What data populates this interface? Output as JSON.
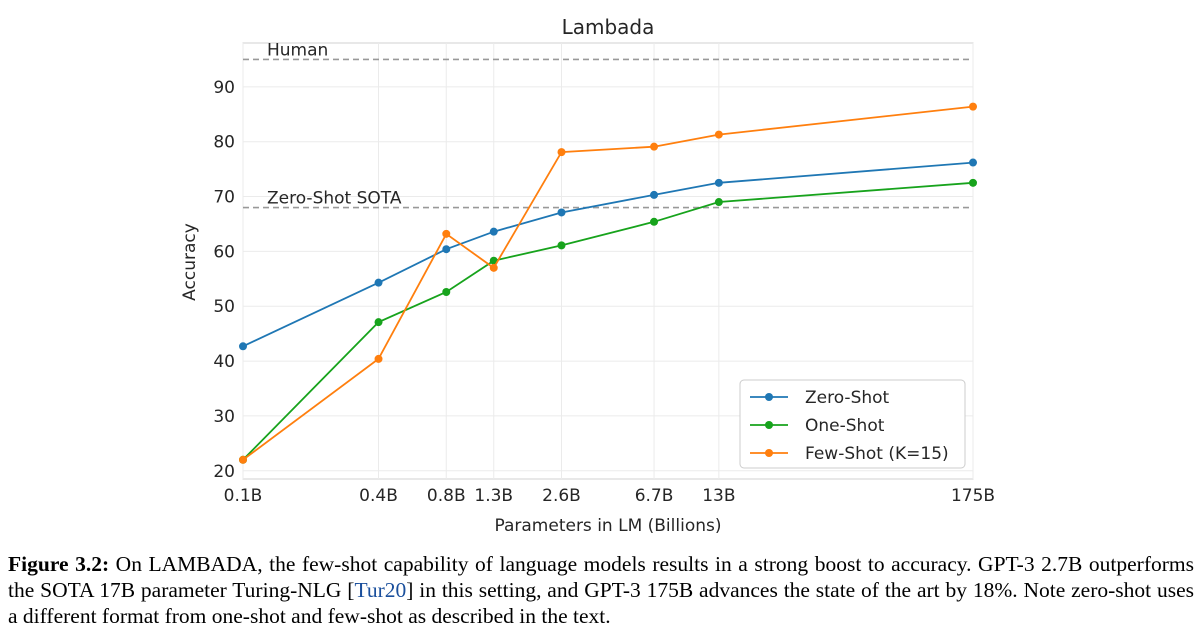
{
  "chart_data": {
    "type": "line",
    "title": "Lambada",
    "xlabel": "Parameters in LM (Billions)",
    "ylabel": "Accuracy",
    "x_scale": "log",
    "x_ticks": [
      {
        "value": 0.1,
        "label": "0.1B"
      },
      {
        "value": 0.4,
        "label": "0.4B"
      },
      {
        "value": 0.8,
        "label": "0.8B"
      },
      {
        "value": 1.3,
        "label": "1.3B"
      },
      {
        "value": 2.6,
        "label": "2.6B"
      },
      {
        "value": 6.7,
        "label": "6.7B"
      },
      {
        "value": 13,
        "label": "13B"
      },
      {
        "value": 175,
        "label": "175B"
      }
    ],
    "y_ticks": [
      20,
      30,
      40,
      50,
      60,
      70,
      80,
      90
    ],
    "xlim": [
      0.1,
      175
    ],
    "ylim": [
      18.5,
      98
    ],
    "grid": true,
    "legend_position": "lower-right",
    "reference_lines": [
      {
        "label": "Human",
        "y": 95
      },
      {
        "label": "Zero-Shot SOTA",
        "y": 68
      }
    ],
    "x": [
      0.1,
      0.4,
      0.8,
      1.3,
      2.6,
      6.7,
      13,
      175
    ],
    "series": [
      {
        "name": "Zero-Shot",
        "color": "#1f77b4",
        "values": [
          42.7,
          54.3,
          60.4,
          63.6,
          67.1,
          70.3,
          72.5,
          76.2
        ]
      },
      {
        "name": "One-Shot",
        "color": "#17a31c",
        "values": [
          22.0,
          47.1,
          52.6,
          58.3,
          61.1,
          65.4,
          69.0,
          72.5
        ]
      },
      {
        "name": "Few-Shot (K=15)",
        "color": "#ff7f0e",
        "values": [
          22.0,
          40.4,
          63.2,
          57.0,
          78.1,
          79.1,
          81.3,
          86.4
        ]
      }
    ]
  },
  "caption": {
    "label": "Figure 3.2:",
    "text_before_cite": " On LAMBADA, the few-shot capability of language models results in a strong boost to accuracy. GPT-3 2.7B outperforms the SOTA 17B parameter Turing-NLG [",
    "cite": "Tur20",
    "text_after_cite": "] in this setting, and GPT-3 175B advances the state of the art by 18%. Note zero-shot uses a different format from one-shot and few-shot as described in the text."
  }
}
